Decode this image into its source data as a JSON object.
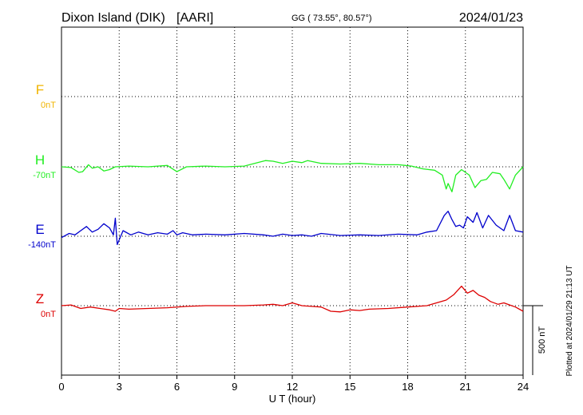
{
  "header": {
    "station": "Dixon Island (DIK)",
    "agency": "[AARI]",
    "coords": "GG ( 73.55°,  80.57°)",
    "date": "2024/01/23"
  },
  "plotted_note": "Plotted at 2024/01/29 21:13 UT",
  "scale_bar_label": "500 nT",
  "chart_data": {
    "type": "line",
    "xlabel": "U T (hour)",
    "xlim": [
      0,
      24
    ],
    "x_ticks": [
      "0",
      "3",
      "6",
      "9",
      "12",
      "15",
      "18",
      "21",
      "24"
    ],
    "grid": true,
    "units_per_scale_bar": 500,
    "series": [
      {
        "name": "F",
        "baseline_label": "0nT",
        "color": "#f0b400",
        "x": [],
        "y": []
      },
      {
        "name": "H",
        "baseline_label": "-70nT",
        "color": "#22ee22",
        "x": [
          0,
          0.5,
          0.9,
          1.1,
          1.4,
          1.6,
          1.9,
          2.2,
          2.5,
          2.8,
          3.5,
          4.5,
          5.5,
          6.0,
          6.5,
          7.5,
          8.5,
          9.5,
          10.2,
          10.6,
          11.0,
          11.5,
          12.0,
          12.5,
          12.8,
          13.5,
          14.5,
          15.5,
          16.5,
          17.5,
          18.2,
          18.8,
          19.4,
          19.8,
          20.0,
          20.1,
          20.3,
          20.5,
          20.8,
          21.0,
          21.2,
          21.5,
          21.8,
          22.1,
          22.4,
          22.8,
          23.0,
          23.3,
          23.6,
          24.0
        ],
        "y": [
          0,
          -5,
          -40,
          -35,
          15,
          -10,
          0,
          -30,
          -20,
          0,
          5,
          0,
          10,
          -35,
          0,
          5,
          0,
          5,
          30,
          45,
          40,
          25,
          40,
          30,
          45,
          25,
          20,
          25,
          15,
          15,
          5,
          -15,
          -25,
          -60,
          -160,
          -120,
          -180,
          -60,
          -20,
          -40,
          -60,
          -150,
          -100,
          -90,
          -40,
          -50,
          -90,
          -160,
          -60,
          0
        ]
      },
      {
        "name": "E",
        "baseline_label": "-140nT",
        "color": "#0000cc",
        "x": [
          0,
          0.4,
          0.7,
          1.0,
          1.3,
          1.6,
          1.9,
          2.2,
          2.5,
          2.7,
          2.8,
          2.9,
          3.2,
          3.6,
          4.0,
          4.5,
          5.0,
          5.5,
          5.8,
          6.0,
          6.3,
          6.8,
          7.5,
          8.5,
          9.5,
          10.5,
          11.0,
          11.5,
          12.0,
          12.5,
          13.0,
          13.5,
          14.5,
          15.5,
          16.5,
          17.5,
          18.5,
          19.0,
          19.5,
          19.9,
          20.1,
          20.3,
          20.5,
          20.7,
          20.9,
          21.1,
          21.4,
          21.6,
          21.9,
          22.2,
          22.6,
          23.0,
          23.3,
          23.6,
          24.0
        ],
        "y": [
          -10,
          20,
          10,
          40,
          70,
          30,
          50,
          90,
          60,
          10,
          130,
          -60,
          40,
          10,
          30,
          10,
          25,
          15,
          40,
          10,
          25,
          10,
          15,
          10,
          20,
          10,
          0,
          15,
          5,
          10,
          0,
          20,
          5,
          10,
          5,
          15,
          10,
          30,
          40,
          150,
          180,
          120,
          70,
          80,
          60,
          140,
          100,
          170,
          60,
          150,
          80,
          40,
          150,
          40,
          30
        ]
      },
      {
        "name": "Z",
        "baseline_label": "0nT",
        "color": "#dd0000",
        "x": [
          0,
          0.5,
          1.0,
          1.5,
          2.0,
          2.5,
          2.8,
          3.0,
          3.5,
          4.5,
          5.5,
          6.5,
          7.5,
          8.5,
          9.5,
          10.5,
          11.0,
          11.5,
          12.0,
          12.5,
          13.0,
          13.5,
          14.0,
          14.5,
          15.0,
          15.5,
          16.0,
          17.0,
          18.0,
          19.0,
          19.5,
          20.0,
          20.4,
          20.8,
          21.1,
          21.4,
          21.7,
          22.0,
          22.3,
          22.7,
          23.0,
          23.3,
          23.6,
          24.0
        ],
        "y": [
          0,
          5,
          -20,
          -10,
          -20,
          -30,
          -40,
          -20,
          -25,
          -20,
          -15,
          -5,
          0,
          0,
          0,
          5,
          10,
          0,
          20,
          0,
          -5,
          -10,
          -40,
          -45,
          -30,
          -35,
          -25,
          -20,
          -10,
          0,
          20,
          40,
          80,
          140,
          90,
          110,
          75,
          60,
          30,
          10,
          20,
          5,
          -10,
          -40
        ]
      }
    ]
  }
}
